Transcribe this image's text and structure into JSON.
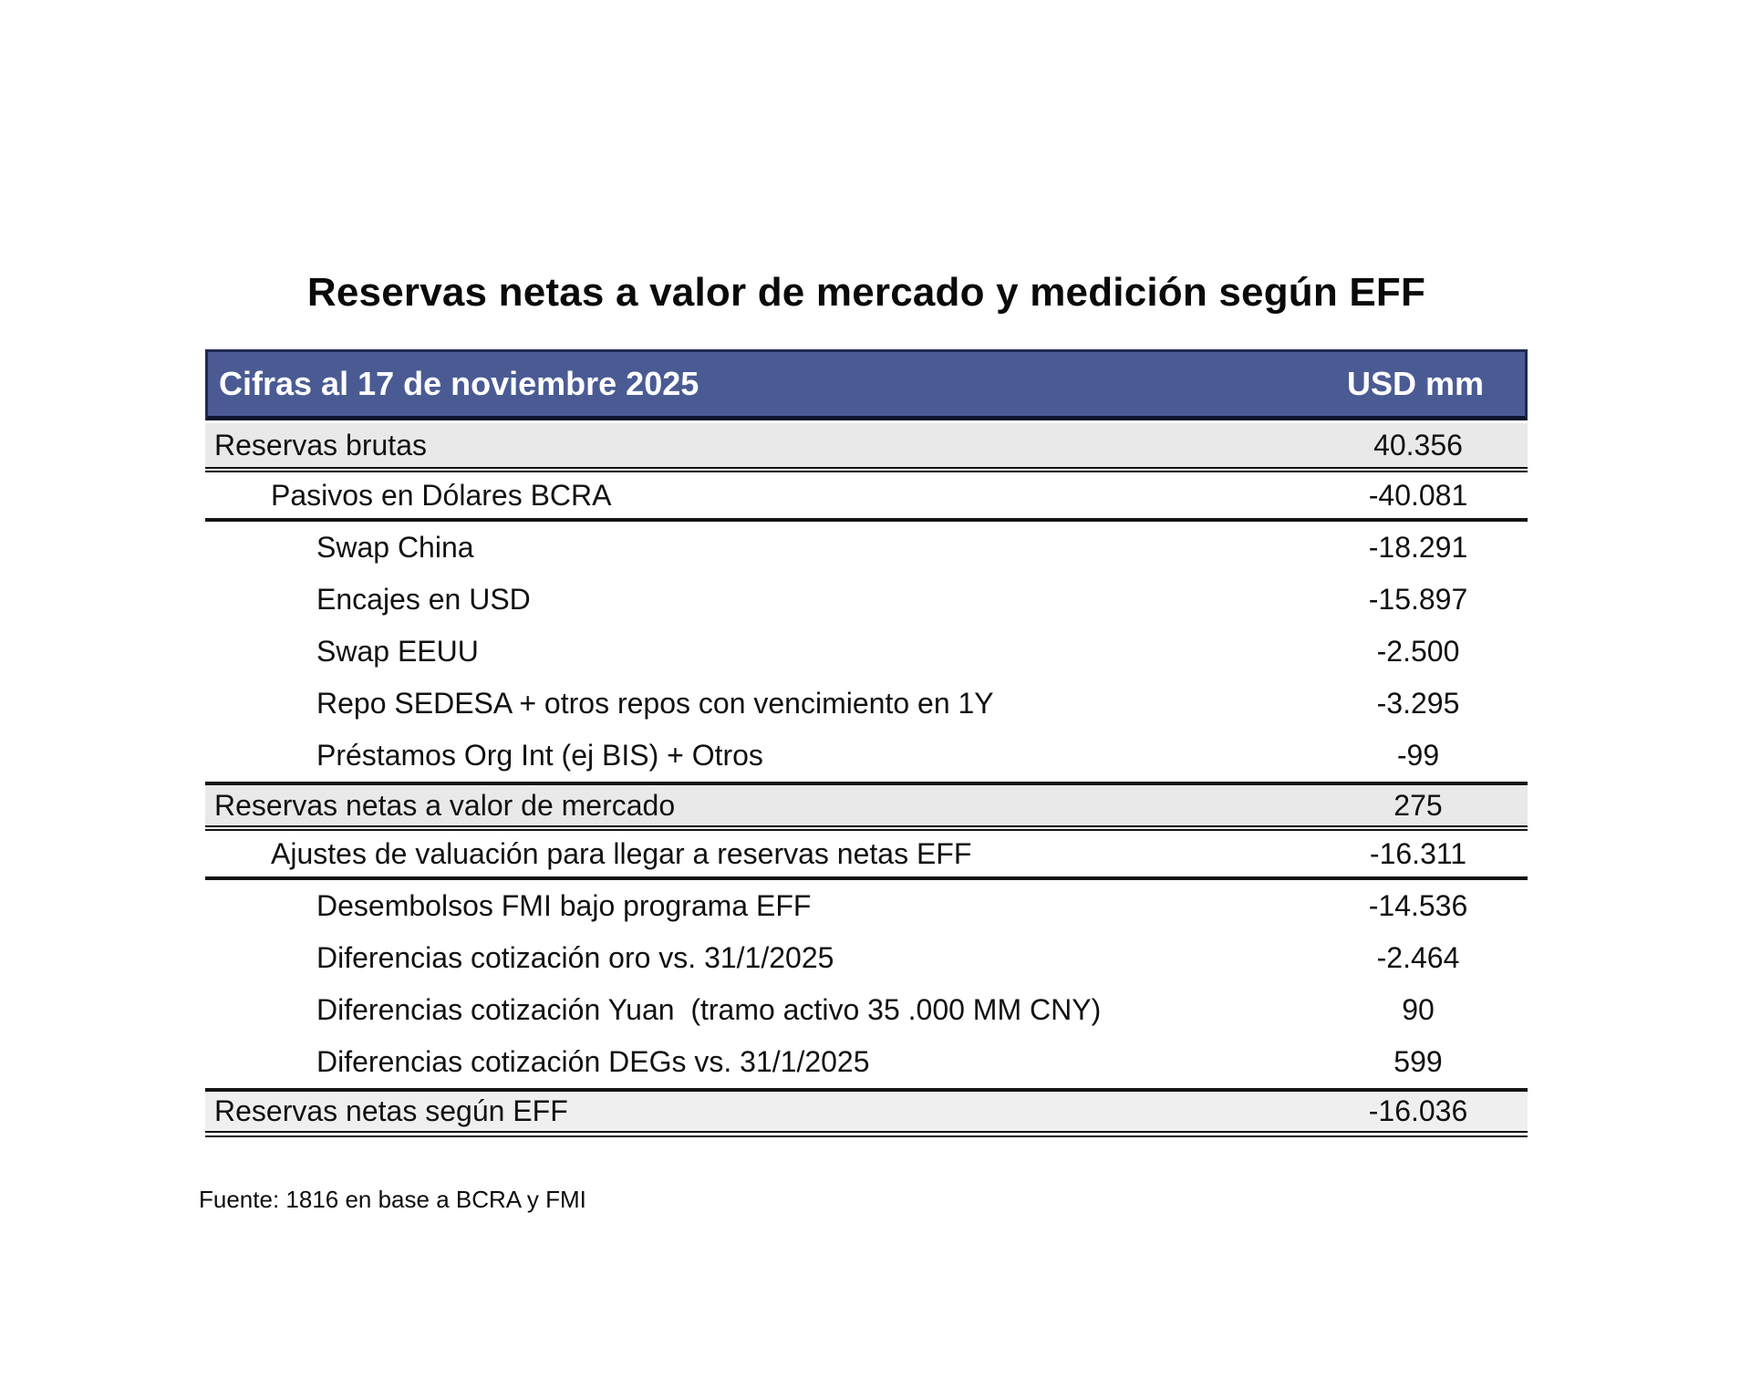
{
  "title": "Reservas netas a valor de mercado y medición según EFF",
  "table": {
    "header": {
      "label": "Cifras al 17 de noviembre 2025",
      "unit": "USD mm"
    },
    "rows": [
      {
        "label": "Reservas brutas",
        "value": "40.356",
        "indent": 0,
        "style": "summary"
      },
      {
        "label": "Pasivos en Dólares BCRA",
        "value": "-40.081",
        "indent": 1,
        "style": "subtotal"
      },
      {
        "label": "Swap China",
        "value": "-18.291",
        "indent": 2,
        "style": "item"
      },
      {
        "label": "Encajes en USD",
        "value": "-15.897",
        "indent": 2,
        "style": "item"
      },
      {
        "label": "Swap EEUU",
        "value": "-2.500",
        "indent": 2,
        "style": "item"
      },
      {
        "label": "Repo SEDESA + otros repos con vencimiento en 1Y",
        "value": "-3.295",
        "indent": 2,
        "style": "item"
      },
      {
        "label": "Préstamos Org Int (ej BIS) + Otros",
        "value": "-99",
        "indent": 2,
        "style": "item"
      },
      {
        "label": "Reservas netas a valor de mercado",
        "value": "275",
        "indent": 0,
        "style": "summary-mid"
      },
      {
        "label": "Ajustes de valuación para llegar a reservas netas EFF",
        "value": "-16.311",
        "indent": 1,
        "style": "subtotal"
      },
      {
        "label": "Desembolsos FMI bajo programa EFF",
        "value": "-14.536",
        "indent": 2,
        "style": "item"
      },
      {
        "label": "Diferencias cotización oro vs. 31/1/2025",
        "value": "-2.464",
        "indent": 2,
        "style": "item"
      },
      {
        "label": "Diferencias cotización Yuan  (tramo activo 35 .000 MM CNY)",
        "value": "90",
        "indent": 2,
        "style": "item"
      },
      {
        "label": "Diferencias cotización DEGs vs. 31/1/2025",
        "value": "599",
        "indent": 2,
        "style": "item"
      },
      {
        "label": "Reservas netas según EFF",
        "value": "-16.036",
        "indent": 0,
        "style": "summary-end"
      }
    ]
  },
  "footer": {
    "source": "Fuente: 1816 en base a BCRA y FMI"
  },
  "colors": {
    "header_bg": "#4a5b94",
    "header_border": "#1e2a52",
    "header_text": "#ffffff",
    "summary_row_bg": "#e9e9e9",
    "text": "#111111"
  },
  "chart_data": {
    "type": "table",
    "title": "Reservas netas a valor de mercado y medición según EFF",
    "columns": [
      "Cifras al 17 de noviembre 2025",
      "USD mm"
    ],
    "unit": "USD mm",
    "rows": [
      {
        "label": "Reservas brutas",
        "value": 40356,
        "indent": 0
      },
      {
        "label": "Pasivos en Dólares BCRA",
        "value": -40081,
        "indent": 1
      },
      {
        "label": "Swap China",
        "value": -18291,
        "indent": 2
      },
      {
        "label": "Encajes en USD",
        "value": -15897,
        "indent": 2
      },
      {
        "label": "Swap EEUU",
        "value": -2500,
        "indent": 2
      },
      {
        "label": "Repo SEDESA + otros repos con vencimiento en 1Y",
        "value": -3295,
        "indent": 2
      },
      {
        "label": "Préstamos Org Int (ej BIS) + Otros",
        "value": -99,
        "indent": 2
      },
      {
        "label": "Reservas netas a valor de mercado",
        "value": 275,
        "indent": 0
      },
      {
        "label": "Ajustes de valuación para llegar a reservas netas EFF",
        "value": -16311,
        "indent": 1
      },
      {
        "label": "Desembolsos FMI bajo programa EFF",
        "value": -14536,
        "indent": 2
      },
      {
        "label": "Diferencias cotización oro vs. 31/1/2025",
        "value": -2464,
        "indent": 2
      },
      {
        "label": "Diferencias cotización Yuan (tramo activo 35 .000 MM CNY)",
        "value": 90,
        "indent": 2
      },
      {
        "label": "Diferencias cotización DEGs vs. 31/1/2025",
        "value": 599,
        "indent": 2
      },
      {
        "label": "Reservas netas según EFF",
        "value": -16036,
        "indent": 0
      }
    ],
    "source": "Fuente: 1816 en base a BCRA y FMI"
  }
}
